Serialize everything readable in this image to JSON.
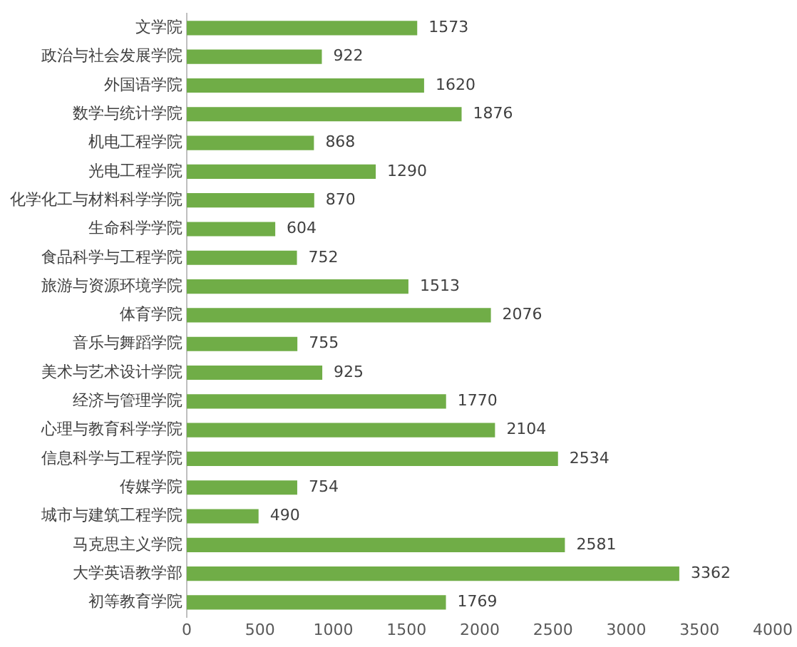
{
  "chart_data": {
    "type": "bar",
    "orientation": "horizontal",
    "categories": [
      "文学院",
      "政治与社会发展学院",
      "外国语学院",
      "数学与统计学院",
      "机电工程学院",
      "光电工程学院",
      "化学化工与材料科学学院",
      "生命科学学院",
      "食品科学与工程学院",
      "旅游与资源环境学院",
      "体育学院",
      "音乐与舞蹈学院",
      "美术与艺术设计学院",
      "经济与管理学院",
      "心理与教育科学学院",
      "信息科学与工程学院",
      "传媒学院",
      "城市与建筑工程学院",
      "马克思主义学院",
      "大学英语教学部",
      "初等教育学院"
    ],
    "values": [
      1573,
      922,
      1620,
      1876,
      868,
      1290,
      870,
      604,
      752,
      1513,
      2076,
      755,
      925,
      1770,
      2104,
      2534,
      754,
      490,
      2581,
      3362,
      1769
    ],
    "color": "#70ad47",
    "xlim": [
      0,
      4000
    ],
    "xticks": [
      0,
      500,
      1000,
      1500,
      2000,
      2500,
      3000,
      3500,
      4000
    ],
    "grid": false,
    "data_labels": true
  }
}
